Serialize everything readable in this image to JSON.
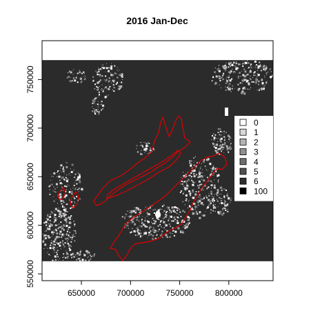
{
  "title": "2016 Jan-Dec",
  "x_axis": {
    "ticks": [
      {
        "value": 650000,
        "label": "650000"
      },
      {
        "value": 700000,
        "label": "700000"
      },
      {
        "value": 750000,
        "label": "750000"
      },
      {
        "value": 800000,
        "label": "800000"
      }
    ],
    "range": [
      610000,
      845000
    ]
  },
  "y_axis": {
    "ticks": [
      {
        "value": 550000,
        "label": "550000"
      },
      {
        "value": 600000,
        "label": "600000"
      },
      {
        "value": 650000,
        "label": "650000"
      },
      {
        "value": 700000,
        "label": "700000"
      },
      {
        "value": 750000,
        "label": "750000"
      }
    ],
    "range": [
      543000,
      790000
    ]
  },
  "raster_extent": {
    "ymin": 563000,
    "ymax": 770000
  },
  "legend": {
    "items": [
      {
        "label": "0",
        "color": "#ffffff"
      },
      {
        "label": "1",
        "color": "#d9d9d9"
      },
      {
        "label": "2",
        "color": "#b5b5b5"
      },
      {
        "label": "3",
        "color": "#909090"
      },
      {
        "label": "4",
        "color": "#6e6e6e"
      },
      {
        "label": "5",
        "color": "#4f4f4f"
      },
      {
        "label": "6",
        "color": "#2e2e2e"
      },
      {
        "label": "100",
        "color": "#000000"
      }
    ]
  },
  "colors": {
    "background_raster": "#2b2b2b",
    "boundary": "#e00000"
  }
}
